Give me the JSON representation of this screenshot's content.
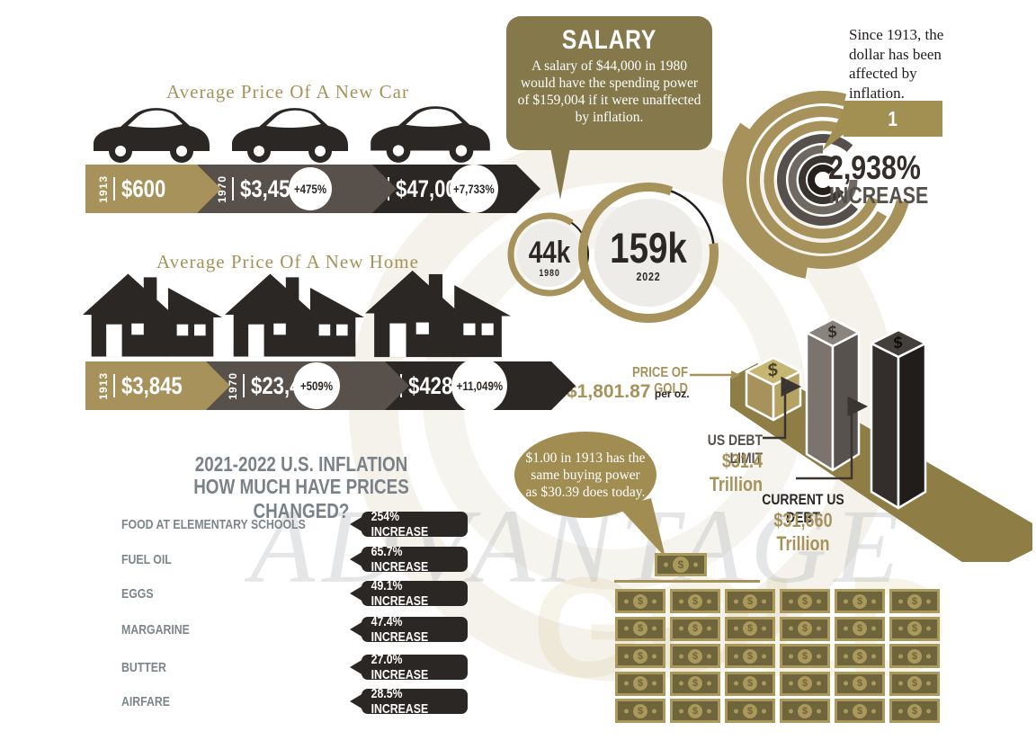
{
  "colors": {
    "gold": "#A6925A",
    "dark": "#2B2724",
    "gray": "#57504B",
    "label_gray": "#7C8589",
    "olive_bubble": "#85794C",
    "gold_bubble": "#A18D52"
  },
  "watermark": {
    "line1": "ADVANTAGE",
    "line2": "GOLD"
  },
  "car_section": {
    "title": "Average Price Of A New Car",
    "segments": [
      {
        "year": "1913",
        "price": "$600",
        "change": ""
      },
      {
        "year": "1970",
        "price": "$3,450",
        "change": "+475%"
      },
      {
        "year": "2022",
        "price": "$47,000",
        "change": "+7,733%"
      }
    ]
  },
  "home_section": {
    "title": "Average Price Of A New Home",
    "segments": [
      {
        "year": "1913",
        "price": "$3,845",
        "change": ""
      },
      {
        "year": "1970",
        "price": "$23,450",
        "change": "+509%"
      },
      {
        "year": "2022",
        "price": "$428,700",
        "change": "+11,049%"
      }
    ]
  },
  "salary": {
    "title": "SALARY",
    "body": "A salary of $44,000 in 1980 would have the spending power of $159,004 if it were unaffected by inflation.",
    "small_circle": {
      "value": "44k",
      "year": "1980"
    },
    "large_circle": {
      "value": "159k",
      "year": "2022"
    }
  },
  "dollar": {
    "intro": "Since 1913, the dollar has been affected by inflation.",
    "tag": "1 DOLLAR",
    "percent": "2,938%",
    "percent_label": "INCREASE"
  },
  "debt": {
    "gold_label": "PRICE OF GOLD",
    "gold_price": "$1,801.87",
    "gold_unit": "per oz.",
    "limit_label": "US DEBT LIMIT",
    "limit_value": "$31.4 Trillion",
    "debt_label": "CURRENT US DEBT",
    "debt_value": "$31,660 Trillion"
  },
  "inflation": {
    "title_line1": "2021-2022 U.S. INFLATION",
    "title_line2": "HOW MUCH HAVE PRICES CHANGED?",
    "items": [
      {
        "label": "FOOD AT ELEMENTARY SCHOOLS",
        "value": "254% INCREASE"
      },
      {
        "label": "FUEL OIL",
        "value": "65.7% INCREASE"
      },
      {
        "label": "EGGS",
        "value": "49.1% INCREASE"
      },
      {
        "label": "MARGARINE",
        "value": "47.4% INCREASE"
      },
      {
        "label": "BUTTER",
        "value": "27.0% INCREASE"
      },
      {
        "label": "AIRFARE",
        "value": "28.5% INCREASE"
      }
    ]
  },
  "buying_power": {
    "bubble": "$1.00 in 1913 has the same buying power as $30.39 does today.",
    "symbol": "$",
    "rows": 5,
    "cols": 6
  },
  "chart_data": [
    {
      "type": "bar",
      "title": "Average Price Of A New Car",
      "categories": [
        "1913",
        "1970",
        "2022"
      ],
      "values": [
        600,
        3450,
        47000
      ],
      "annotations": [
        "",
        "+475%",
        "+7,733%"
      ],
      "unit": "USD"
    },
    {
      "type": "bar",
      "title": "Average Price Of A New Home",
      "categories": [
        "1913",
        "1970",
        "2022"
      ],
      "values": [
        3845,
        23450,
        428700
      ],
      "annotations": [
        "",
        "+509%",
        "+11,049%"
      ],
      "unit": "USD"
    },
    {
      "type": "bar",
      "title": "Salary buying power",
      "categories": [
        "1980",
        "2022"
      ],
      "values": [
        44000,
        159004
      ],
      "note": "A salary of $44,000 in 1980 would have the spending power of $159,004 if it were unaffected by inflation."
    },
    {
      "type": "bar",
      "title": "Dollar inflation since 1913",
      "categories": [
        "1 DOLLAR"
      ],
      "values": [
        2938
      ],
      "unit": "% increase",
      "note": "Since 1913, the dollar has been affected by inflation."
    },
    {
      "type": "bar",
      "title": "US debt vs gold",
      "categories": [
        "PRICE OF GOLD",
        "US DEBT LIMIT",
        "CURRENT US DEBT"
      ],
      "values": [
        1801.87,
        31.4,
        31660
      ],
      "value_labels": [
        "$1,801.87 per oz.",
        "$31.4 Trillion",
        "$31,660 Trillion"
      ]
    },
    {
      "type": "bar",
      "title": "2021-2022 U.S. Inflation — How much have prices changed?",
      "categories": [
        "FOOD AT ELEMENTARY SCHOOLS",
        "FUEL OIL",
        "EGGS",
        "MARGARINE",
        "BUTTER",
        "AIRFARE"
      ],
      "values": [
        254,
        65.7,
        49.1,
        47.4,
        27.0,
        28.5
      ],
      "unit": "% increase"
    },
    {
      "type": "bar",
      "title": "Buying power 1913 vs today",
      "categories": [
        "1913",
        "today"
      ],
      "values": [
        1.0,
        30.39
      ],
      "note": "$1.00 in 1913 has the same buying power as $30.39 does today.",
      "bills_shown": 31
    }
  ]
}
